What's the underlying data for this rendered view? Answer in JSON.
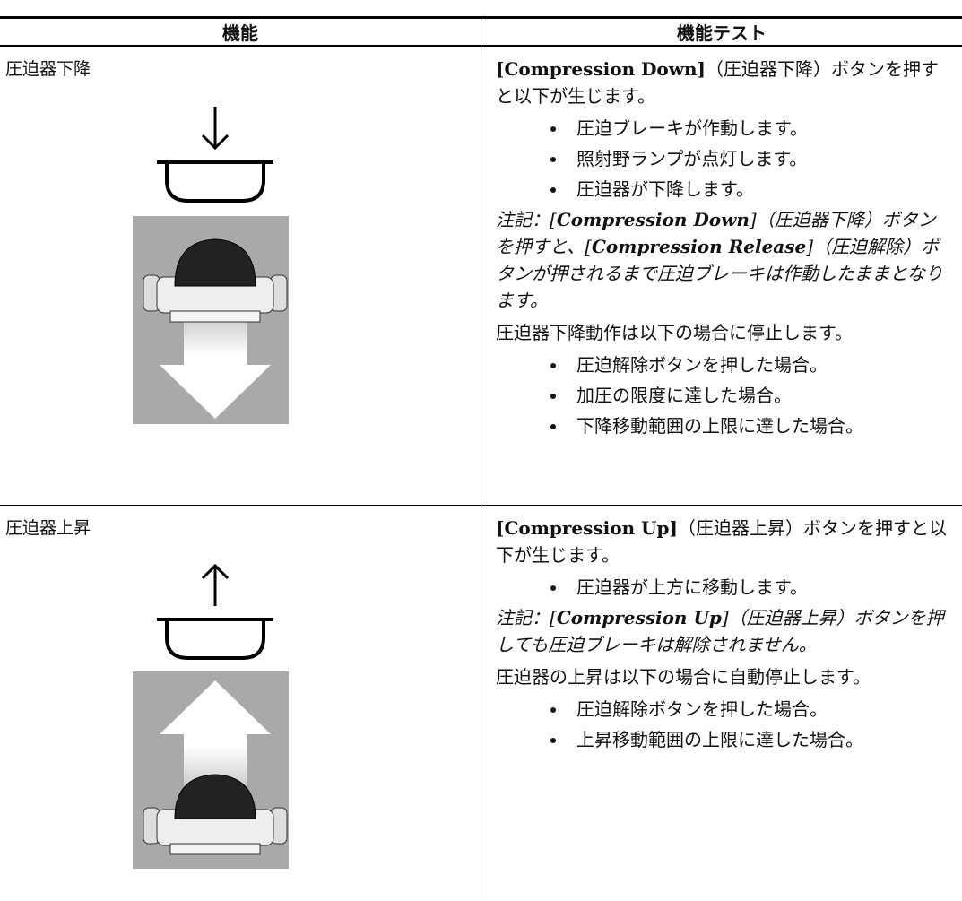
{
  "table": {
    "headers": [
      "機能",
      "機能テスト"
    ],
    "rows": [
      {
        "function": "圧迫器下降",
        "content": [
          {
            "kind": "paragraph",
            "segments": [
              {
                "text": "[Compression Down]",
                "style": "bold"
              },
              {
                "text": "（圧迫器下降）ボタンを押すと以下が生じます。",
                "style": "normal"
              }
            ]
          },
          {
            "kind": "bullets",
            "items": [
              "圧迫ブレーキが作動します。",
              "照射野ランプが点灯します。",
              "圧迫器が下降します。"
            ]
          },
          {
            "kind": "paragraph",
            "segments": [
              {
                "text": "注記：[",
                "style": "italic"
              },
              {
                "text": "Compression Down",
                "style": "bold-italic"
              },
              {
                "text": "]（圧迫器下降）ボタンを押すと、[",
                "style": "italic"
              },
              {
                "text": "Compression Release",
                "style": "bold-italic"
              },
              {
                "text": "]（圧迫解除）ボタンが押されるまで圧迫ブレーキは作動したままとなります。",
                "style": "italic"
              }
            ]
          },
          {
            "kind": "paragraph",
            "segments": [
              {
                "text": "圧迫器下降動作は以下の場合に停止します。",
                "style": "normal"
              }
            ]
          },
          {
            "kind": "bullets",
            "items": [
              "圧迫解除ボタンを押した場合。",
              "加圧の限度に達した場合。",
              "下降移動範囲の上限に達した場合。"
            ]
          }
        ]
      },
      {
        "function": "圧迫器上昇",
        "content": [
          {
            "kind": "paragraph",
            "segments": [
              {
                "text": "[Compression Up]",
                "style": "bold"
              },
              {
                "text": "（圧迫器上昇）ボタンを押すと以下が生じます。",
                "style": "normal"
              }
            ]
          },
          {
            "kind": "bullets",
            "items": [
              "圧迫器が上方に移動します。"
            ]
          },
          {
            "kind": "paragraph",
            "segments": [
              {
                "text": "注記：[",
                "style": "italic"
              },
              {
                "text": "Compression Up",
                "style": "bold-italic"
              },
              {
                "text": "]（圧迫器上昇）ボタンを押しても圧迫ブレーキは解除されません。",
                "style": "italic"
              }
            ]
          },
          {
            "kind": "paragraph",
            "segments": [
              {
                "text": "圧迫器の上昇は以下の場合に自動停止します。",
                "style": "normal"
              }
            ]
          },
          {
            "kind": "bullets",
            "items": [
              "圧迫解除ボタンを押した場合。",
              "上昇移動範囲の上限に達した場合。"
            ]
          }
        ]
      }
    ]
  }
}
